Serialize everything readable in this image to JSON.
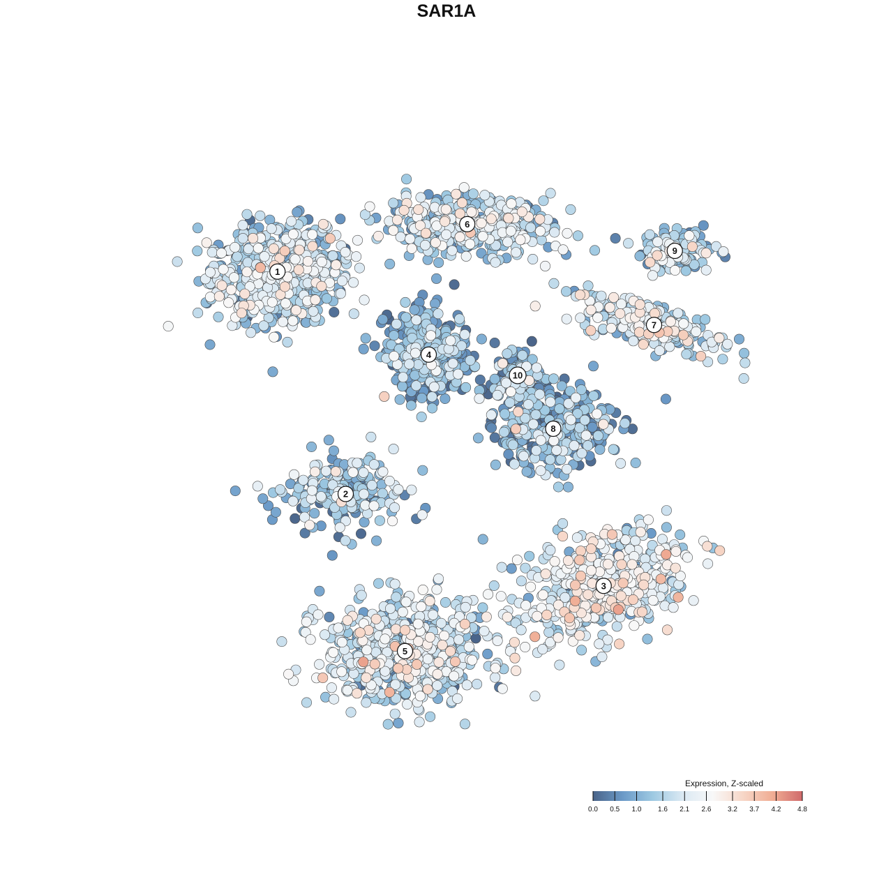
{
  "chart_data": {
    "type": "scatter",
    "title": "SAR1A",
    "xlabel": "",
    "ylabel": "",
    "grid": false,
    "legend": {
      "title": "Expression, Z-scaled",
      "placement": "bottom-right",
      "ticks": [
        "0.0",
        "0.5",
        "1.0",
        "1.6",
        "2.1",
        "2.6",
        "3.2",
        "3.7",
        "4.2",
        "4.8"
      ],
      "range": [
        0.0,
        4.8
      ],
      "colors": [
        "#4a6489",
        "#6b9ac8",
        "#9ec9e2",
        "#dbe9f3",
        "#f8f8f8",
        "#f7d7c8",
        "#f0ad94",
        "#d06a6b"
      ]
    },
    "clusters": [
      {
        "label": "1",
        "x": -28.5,
        "y": 29.5,
        "mean_expr": 1.55
      },
      {
        "label": "2",
        "x": -17.0,
        "y": -8.0,
        "mean_expr": 1.2
      },
      {
        "label": "3",
        "x": 26.5,
        "y": -23.5,
        "mean_expr": 2.1
      },
      {
        "label": "4",
        "x": -3.0,
        "y": 15.5,
        "mean_expr": 0.85
      },
      {
        "label": "5",
        "x": -7.0,
        "y": -34.5,
        "mean_expr": 1.75
      },
      {
        "label": "6",
        "x": 3.5,
        "y": 37.5,
        "mean_expr": 1.6
      },
      {
        "label": "7",
        "x": 35.0,
        "y": 20.5,
        "mean_expr": 1.9
      },
      {
        "label": "8",
        "x": 18.0,
        "y": 3.0,
        "mean_expr": 0.9
      },
      {
        "label": "9",
        "x": 38.5,
        "y": 33.0,
        "mean_expr": 1.5
      },
      {
        "label": "10",
        "x": 12.0,
        "y": 12.0,
        "mean_expr": 1.0
      }
    ],
    "xlim": [
      -60,
      60
    ],
    "ylim": [
      -60,
      60
    ]
  }
}
